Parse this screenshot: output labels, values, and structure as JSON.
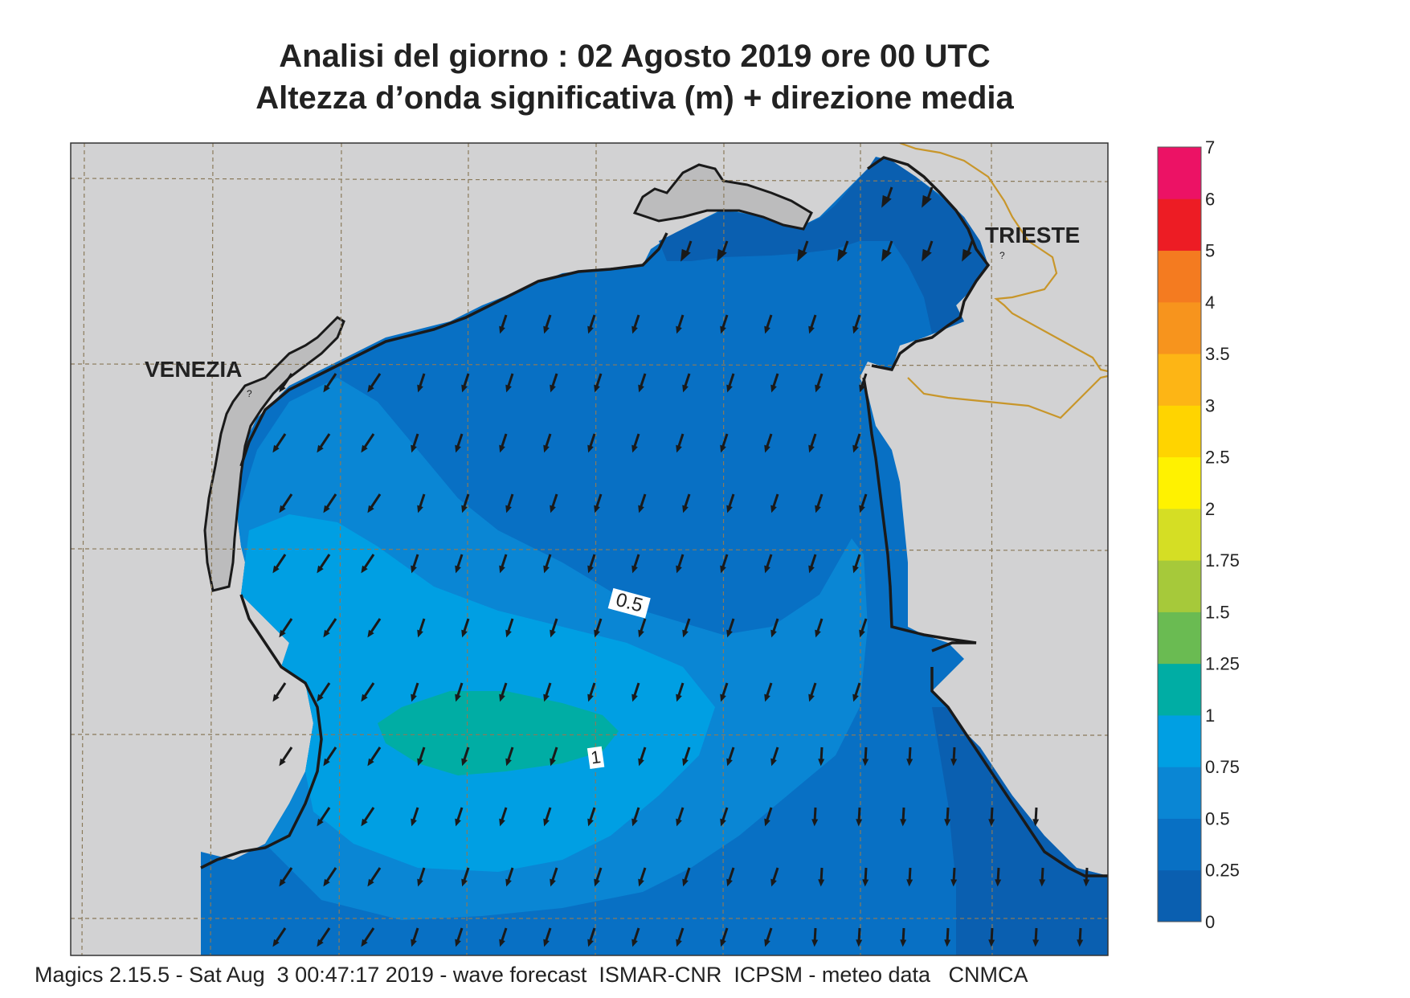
{
  "title": {
    "line1": "Analisi del giorno :  02   Agosto  2019   ore 00 UTC",
    "line2": "Altezza d’onda significativa (m) + direzione media"
  },
  "map": {
    "city_labels": [
      "VENEZIA",
      "TRIESTE"
    ],
    "contour_labels": [
      "0.5",
      "1"
    ],
    "colors": {
      "land": "#d2d2d3",
      "coast": "#1a1a1a",
      "border": "#c8962a",
      "grid": "#8a7a5a",
      "arrow": "#1a1a1a"
    },
    "arrow_direction": "towards south-southwest"
  },
  "legend": {
    "levels": [
      "0",
      "0.25",
      "0.5",
      "0.75",
      "1",
      "1.25",
      "1.5",
      "1.75",
      "2",
      "2.5",
      "3",
      "3.5",
      "4",
      "5",
      "6",
      "7"
    ],
    "colors": [
      "#0a5fb0",
      "#0870c4",
      "#0a86d4",
      "#009fe3",
      "#00ada4",
      "#6abb52",
      "#a6c93a",
      "#d5de24",
      "#fff200",
      "#ffd400",
      "#fdb515",
      "#f7941d",
      "#f47b20",
      "#ed1c24",
      "#ec1265"
    ]
  },
  "footer": "Magics 2.15.5 - Sat Aug  3 00:47:17 2019 - wave forecast  ISMAR-CNR  ICPSM - meteo data   CNMCA"
}
